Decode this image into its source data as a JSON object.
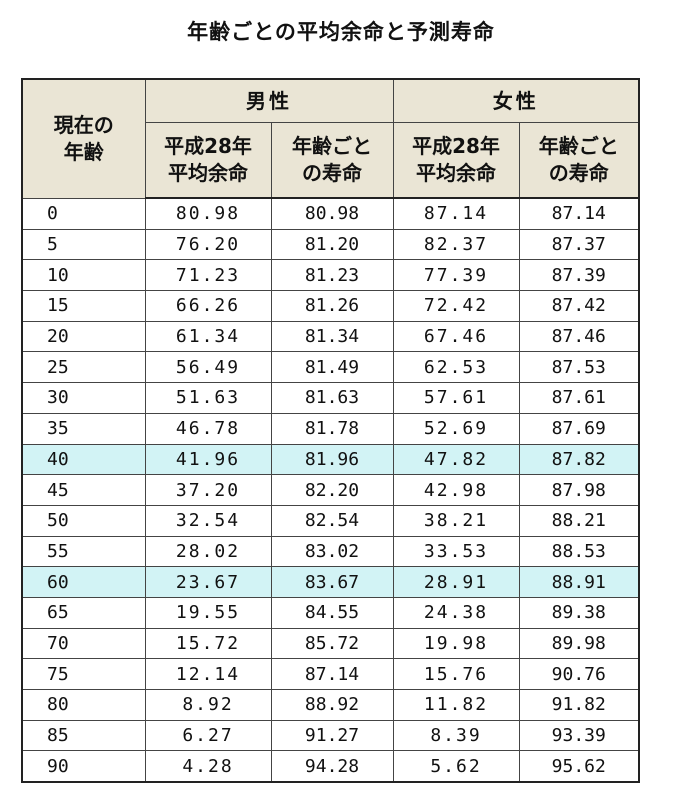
{
  "title": "年齢ごとの平均余命と予測寿命",
  "header": {
    "age": [
      "現在の",
      "年齢"
    ],
    "male": "男性",
    "female": "女性",
    "avg_remaining": [
      "平成28年",
      "平均余命"
    ],
    "lifespan": [
      "年齢ごと",
      "の寿命"
    ]
  },
  "colors": {
    "header_bg": "#eae5d5",
    "highlight_bg": "#d2f3f5"
  },
  "rows": [
    {
      "age": "0",
      "m_avg": "80.98",
      "m_life": "80.98",
      "f_avg": "87.14",
      "f_life": "87.14",
      "highlight": false
    },
    {
      "age": "5",
      "m_avg": "76.20",
      "m_life": "81.20",
      "f_avg": "82.37",
      "f_life": "87.37",
      "highlight": false
    },
    {
      "age": "10",
      "m_avg": "71.23",
      "m_life": "81.23",
      "f_avg": "77.39",
      "f_life": "87.39",
      "highlight": false
    },
    {
      "age": "15",
      "m_avg": "66.26",
      "m_life": "81.26",
      "f_avg": "72.42",
      "f_life": "87.42",
      "highlight": false
    },
    {
      "age": "20",
      "m_avg": "61.34",
      "m_life": "81.34",
      "f_avg": "67.46",
      "f_life": "87.46",
      "highlight": false
    },
    {
      "age": "25",
      "m_avg": "56.49",
      "m_life": "81.49",
      "f_avg": "62.53",
      "f_life": "87.53",
      "highlight": false
    },
    {
      "age": "30",
      "m_avg": "51.63",
      "m_life": "81.63",
      "f_avg": "57.61",
      "f_life": "87.61",
      "highlight": false
    },
    {
      "age": "35",
      "m_avg": "46.78",
      "m_life": "81.78",
      "f_avg": "52.69",
      "f_life": "87.69",
      "highlight": false
    },
    {
      "age": "40",
      "m_avg": "41.96",
      "m_life": "81.96",
      "f_avg": "47.82",
      "f_life": "87.82",
      "highlight": true
    },
    {
      "age": "45",
      "m_avg": "37.20",
      "m_life": "82.20",
      "f_avg": "42.98",
      "f_life": "87.98",
      "highlight": false
    },
    {
      "age": "50",
      "m_avg": "32.54",
      "m_life": "82.54",
      "f_avg": "38.21",
      "f_life": "88.21",
      "highlight": false
    },
    {
      "age": "55",
      "m_avg": "28.02",
      "m_life": "83.02",
      "f_avg": "33.53",
      "f_life": "88.53",
      "highlight": false
    },
    {
      "age": "60",
      "m_avg": "23.67",
      "m_life": "83.67",
      "f_avg": "28.91",
      "f_life": "88.91",
      "highlight": true
    },
    {
      "age": "65",
      "m_avg": "19.55",
      "m_life": "84.55",
      "f_avg": "24.38",
      "f_life": "89.38",
      "highlight": false
    },
    {
      "age": "70",
      "m_avg": "15.72",
      "m_life": "85.72",
      "f_avg": "19.98",
      "f_life": "89.98",
      "highlight": false
    },
    {
      "age": "75",
      "m_avg": "12.14",
      "m_life": "87.14",
      "f_avg": "15.76",
      "f_life": "90.76",
      "highlight": false
    },
    {
      "age": "80",
      "m_avg": "8.92",
      "m_life": "88.92",
      "f_avg": "11.82",
      "f_life": "91.82",
      "highlight": false
    },
    {
      "age": "85",
      "m_avg": "6.27",
      "m_life": "91.27",
      "f_avg": "8.39",
      "f_life": "93.39",
      "highlight": false
    },
    {
      "age": "90",
      "m_avg": "4.28",
      "m_life": "94.28",
      "f_avg": "5.62",
      "f_life": "95.62",
      "highlight": false
    }
  ]
}
